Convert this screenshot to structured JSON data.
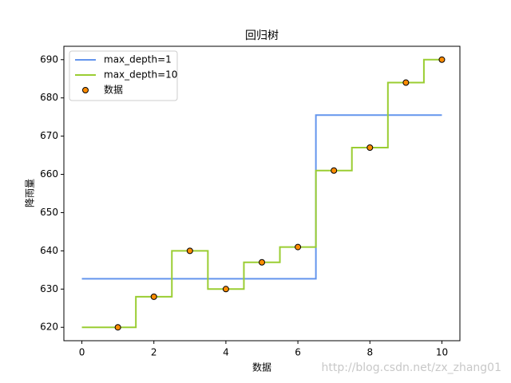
{
  "chart_data": {
    "type": "line",
    "title": "回归树",
    "x_label": "数据",
    "y_label": "降雨量",
    "watermark": "http://blog.csdn.net/zx_zhang01",
    "xlim": [
      -0.5,
      10.5
    ],
    "xticks": [
      0,
      2,
      4,
      6,
      8,
      10
    ],
    "ylim": [
      616.5,
      693.5
    ],
    "yticks": [
      620,
      630,
      640,
      650,
      660,
      670,
      680,
      690
    ],
    "legend": "upper left",
    "series": [
      {
        "name": "max_depth=1",
        "color": "#6495ed",
        "style": "line",
        "x": [
          0,
          6.5,
          6.5,
          10
        ],
        "values": [
          632.7,
          632.7,
          675.5,
          675.5
        ]
      },
      {
        "name": "max_depth=10",
        "color": "#9acd32",
        "style": "line",
        "x": [
          0,
          1.5,
          1.5,
          2.5,
          2.5,
          3.5,
          3.5,
          4.5,
          4.5,
          5.5,
          5.5,
          6.5,
          6.5,
          7.5,
          7.5,
          8.5,
          8.5,
          9.5,
          9.5,
          10
        ],
        "values": [
          620,
          620,
          628,
          628,
          640,
          640,
          630,
          630,
          637,
          637,
          641,
          641,
          661,
          661,
          667,
          667,
          684,
          684,
          690,
          690
        ]
      },
      {
        "name": "数据",
        "color": "#ff8c00",
        "style": "scatter",
        "edgecolor": "#000000",
        "x": [
          1,
          2,
          3,
          4,
          5,
          6,
          7,
          8,
          9,
          10
        ],
        "values": [
          620,
          628,
          640,
          630,
          637,
          641,
          661,
          667,
          684,
          690
        ]
      }
    ]
  }
}
